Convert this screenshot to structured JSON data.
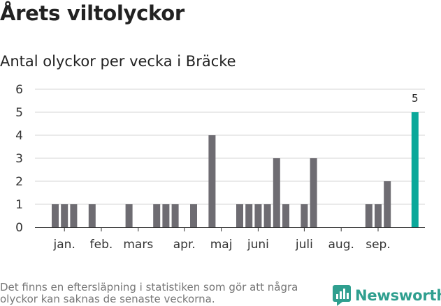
{
  "title": "Årets viltolyckor",
  "subtitle": "Antal olyckor per vecka i Bräcke",
  "footnote": "Det finns en eftersläpning i statistiken som gör att några olyckor kan saknas de senaste veckorna.",
  "brand": {
    "name": "Newsworthy",
    "icon": "newsworthy-chart-logo-icon",
    "color": "#2f9f8f"
  },
  "chart_data": {
    "type": "bar",
    "x": [
      1,
      2,
      3,
      4,
      5,
      6,
      7,
      8,
      9,
      10,
      11,
      12,
      13,
      14,
      15,
      16,
      17,
      18,
      19,
      20,
      21,
      22,
      23,
      24,
      25,
      26,
      27,
      28,
      29,
      30,
      31,
      32,
      33,
      34,
      35,
      36,
      37,
      38,
      39,
      40
    ],
    "values": [
      1,
      1,
      1,
      0,
      1,
      0,
      0,
      0,
      1,
      0,
      0,
      1,
      1,
      1,
      0,
      1,
      0,
      4,
      0,
      0,
      1,
      1,
      1,
      1,
      3,
      1,
      0,
      1,
      3,
      0,
      0,
      0,
      0,
      0,
      1,
      1,
      2,
      0,
      0,
      5
    ],
    "month_labels": [
      {
        "label": "jan.",
        "week": 2
      },
      {
        "label": "feb.",
        "week": 6
      },
      {
        "label": "mars",
        "week": 10
      },
      {
        "label": "apr.",
        "week": 15
      },
      {
        "label": "maj",
        "week": 19
      },
      {
        "label": "juni",
        "week": 23
      },
      {
        "label": "juli",
        "week": 28
      },
      {
        "label": "aug.",
        "week": 32
      },
      {
        "label": "sep.",
        "week": 36
      }
    ],
    "yticks": [
      0,
      1,
      2,
      3,
      4,
      5,
      6
    ],
    "ylim": [
      0,
      6
    ],
    "grid": true,
    "colors": {
      "bar": "#6e6c72",
      "highlight": "#0aa89a"
    },
    "highlight": {
      "week": 40,
      "label": "5"
    }
  }
}
